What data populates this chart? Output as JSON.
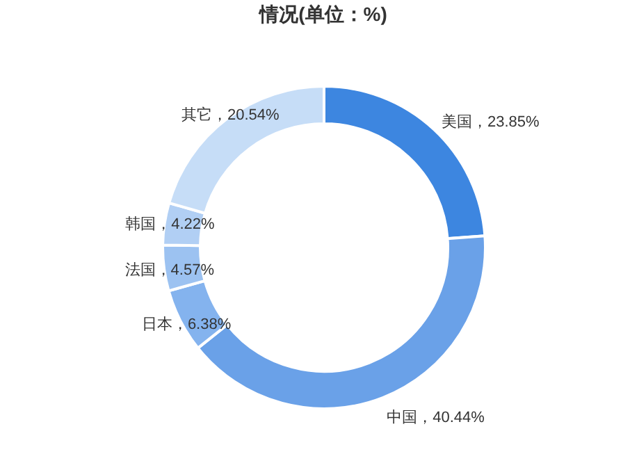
{
  "chart_data": {
    "type": "donut",
    "title": "情况(单位：%)",
    "categories": [
      "美国",
      "中国",
      "日本",
      "法国",
      "韩国",
      "其它"
    ],
    "values": [
      23.85,
      40.44,
      6.38,
      4.57,
      4.22,
      20.54
    ],
    "colors": [
      "#3d86e0",
      "#6aa1e8",
      "#84b3ee",
      "#9cc2f1",
      "#b1cff4",
      "#c6ddf7"
    ],
    "value_labels": [
      "，23.85%",
      "，40.44%",
      "，6.38%",
      "，4.57%",
      "，4.22%",
      "，20.54%"
    ]
  }
}
